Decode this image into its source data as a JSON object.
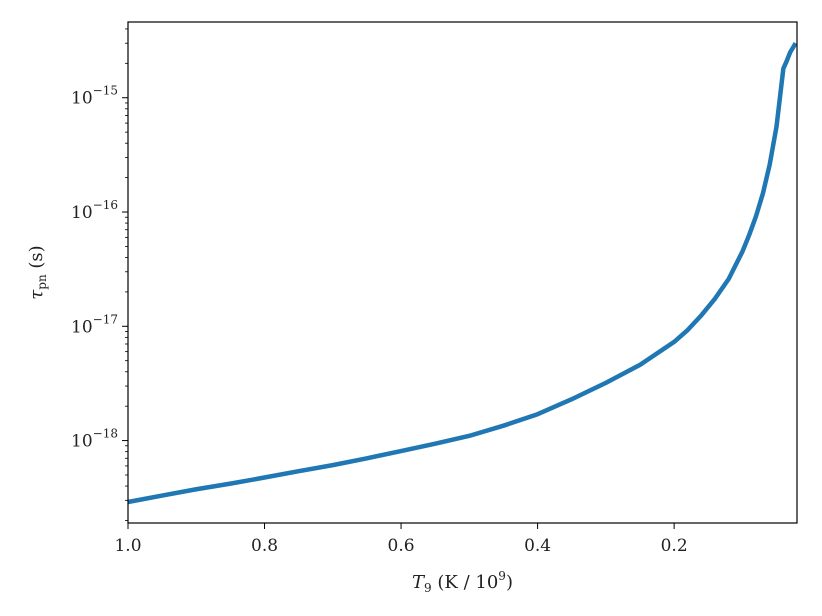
{
  "chart_data": {
    "type": "line",
    "xlabel": {
      "symbol": "T",
      "subscript": "9",
      "units_prefix": " (K / 10",
      "units_exponent": "9",
      "units_suffix": ")"
    },
    "ylabel": {
      "symbol": "τ",
      "subscript": "pn",
      "units": " (s)"
    },
    "x_inverted": true,
    "y_scale": "log",
    "xlim": [
      1.0,
      0.02
    ],
    "ylim": [
      1.9e-19,
      4.6e-15
    ],
    "x_ticks": [
      {
        "value": 1.0,
        "label": "1.0"
      },
      {
        "value": 0.8,
        "label": "0.8"
      },
      {
        "value": 0.6,
        "label": "0.6"
      },
      {
        "value": 0.4,
        "label": "0.4"
      },
      {
        "value": 0.2,
        "label": "0.2"
      }
    ],
    "y_ticks": [
      {
        "value": 1e-18,
        "base": "10",
        "exponent": "−18"
      },
      {
        "value": 1e-17,
        "base": "10",
        "exponent": "−17"
      },
      {
        "value": 1e-16,
        "base": "10",
        "exponent": "−16"
      },
      {
        "value": 1e-15,
        "base": "10",
        "exponent": "−15"
      }
    ],
    "grid": false,
    "series": [
      {
        "color": "#1f77b4",
        "x": [
          1.0,
          0.95,
          0.9,
          0.85,
          0.8,
          0.75,
          0.7,
          0.65,
          0.6,
          0.55,
          0.5,
          0.45,
          0.4,
          0.35,
          0.3,
          0.25,
          0.2,
          0.18,
          0.16,
          0.14,
          0.12,
          0.1,
          0.09,
          0.08,
          0.07,
          0.06,
          0.05,
          0.04,
          0.035,
          0.03,
          0.025,
          0.022
        ],
        "y": [
          2.9e-19,
          3.3e-19,
          3.75e-19,
          4.2e-19,
          4.75e-19,
          5.4e-19,
          6.1e-19,
          7e-19,
          8.1e-19,
          9.4e-19,
          1.1e-18,
          1.35e-18,
          1.7e-18,
          2.3e-18,
          3.2e-18,
          4.6e-18,
          7.3e-18,
          9.3e-18,
          1.25e-17,
          1.75e-17,
          2.6e-17,
          4.5e-17,
          6.3e-17,
          9.2e-17,
          1.45e-16,
          2.6e-16,
          5.6e-16,
          1.8e-15,
          2.1e-15,
          2.5e-15,
          2.8e-15,
          3e-15
        ]
      }
    ]
  }
}
